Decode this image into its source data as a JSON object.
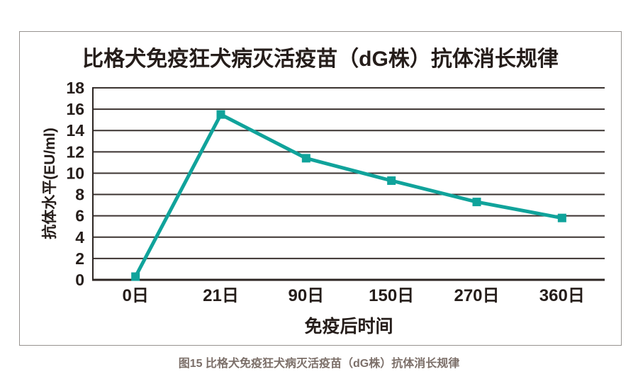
{
  "caption": "图15 比格犬免疫狂犬病灭活疫苗（dG株）抗体消长规律",
  "chart_data": {
    "type": "line",
    "title": "比格犬免疫狂犬病灭活疫苗（dG株）抗体消长规律",
    "xlabel": "免疫后时间",
    "ylabel": "抗体水平(EU/ml)",
    "categories": [
      "0日",
      "21日",
      "90日",
      "150日",
      "270日",
      "360日"
    ],
    "series": [
      {
        "name": "抗体水平",
        "values": [
          0.3,
          15.5,
          11.4,
          9.3,
          7.3,
          5.8
        ]
      }
    ],
    "ylim": [
      0,
      18
    ],
    "ytick_step": 2,
    "grid": true,
    "legend": false,
    "marker": "square",
    "colors": {
      "line": "#10a39b",
      "grid": "#3b3330",
      "axis": "#2c2522",
      "text": "#251d1a",
      "caption": "#7c6f69",
      "border": "#979390",
      "background": "#ffffff"
    }
  }
}
